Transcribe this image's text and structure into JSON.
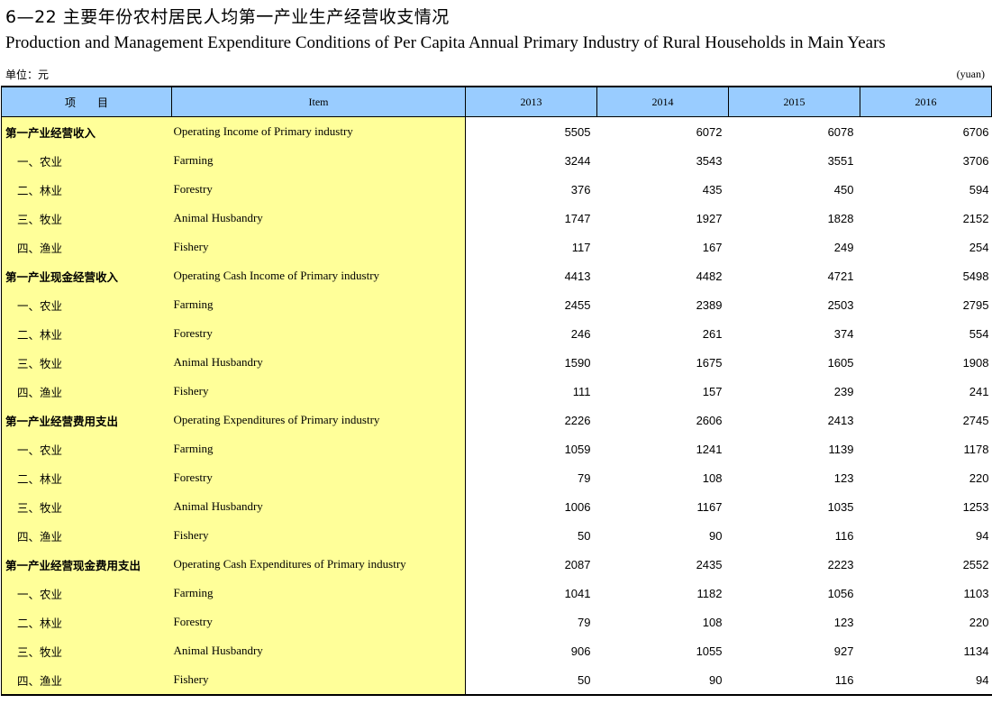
{
  "title_cn": "6—22  主要年份农村居民人均第一产业生产经营收支情况",
  "title_en": "Production and Management Expenditure Conditions of Per Capita Annual Primary Industry of Rural Households in Main Years",
  "unit_cn": "单位：元",
  "unit_en": "(yuan)",
  "header": {
    "item_cn": "项　　目",
    "item_en": "Item",
    "years": [
      "2013",
      "2014",
      "2015",
      "2016"
    ]
  },
  "rows": [
    {
      "cn": "第一产业经营收入",
      "en": "Operating  Income of   Primary industry",
      "values": [
        "5505",
        "6072",
        "6078",
        "6706"
      ],
      "level": "main"
    },
    {
      "cn": "一、农业",
      "en": "Farming",
      "values": [
        "3244",
        "3543",
        "3551",
        "3706"
      ],
      "level": "sub"
    },
    {
      "cn": "二、林业",
      "en": "Forestry",
      "values": [
        "376",
        "435",
        "450",
        "594"
      ],
      "level": "sub"
    },
    {
      "cn": "三、牧业",
      "en": "Animal Husbandry",
      "values": [
        "1747",
        "1927",
        "1828",
        "2152"
      ],
      "level": "sub"
    },
    {
      "cn": "四、渔业",
      "en": "Fishery",
      "values": [
        "117",
        "167",
        "249",
        "254"
      ],
      "level": "sub"
    },
    {
      "cn": "第一产业现金经营收入",
      "en": "Operating Cash Income of Primary industry",
      "values": [
        "4413",
        "4482",
        "4721",
        "5498"
      ],
      "level": "main"
    },
    {
      "cn": "一、农业",
      "en": "Farming",
      "values": [
        "2455",
        "2389",
        "2503",
        "2795"
      ],
      "level": "sub"
    },
    {
      "cn": "二、林业",
      "en": "Forestry",
      "values": [
        "246",
        "261",
        "374",
        "554"
      ],
      "level": "sub"
    },
    {
      "cn": "三、牧业",
      "en": "Animal Husbandry",
      "values": [
        "1590",
        "1675",
        "1605",
        "1908"
      ],
      "level": "sub"
    },
    {
      "cn": "四、渔业",
      "en": "Fishery",
      "values": [
        "111",
        "157",
        "239",
        "241"
      ],
      "level": "sub"
    },
    {
      "cn": "第一产业经营费用支出",
      "en": "Operating Expenditures of Primary industry",
      "values": [
        "2226",
        "2606",
        "2413",
        "2745"
      ],
      "level": "main"
    },
    {
      "cn": "一、农业",
      "en": "Farming",
      "values": [
        "1059",
        "1241",
        "1139",
        "1178"
      ],
      "level": "sub"
    },
    {
      "cn": "二、林业",
      "en": "Forestry",
      "values": [
        "79",
        "108",
        "123",
        "220"
      ],
      "level": "sub"
    },
    {
      "cn": "三、牧业",
      "en": "Animal Husbandry",
      "values": [
        "1006",
        "1167",
        "1035",
        "1253"
      ],
      "level": "sub"
    },
    {
      "cn": "四、渔业",
      "en": "Fishery",
      "values": [
        "50",
        "90",
        "116",
        "94"
      ],
      "level": "sub"
    },
    {
      "cn": "第一产业经营现金费用支出",
      "en": "Operating Cash Expenditures of Primary industry",
      "values": [
        "2087",
        "2435",
        "2223",
        "2552"
      ],
      "level": "main"
    },
    {
      "cn": "一、农业",
      "en": "Farming",
      "values": [
        "1041",
        "1182",
        "1056",
        "1103"
      ],
      "level": "sub"
    },
    {
      "cn": "二、林业",
      "en": "Forestry",
      "values": [
        "79",
        "108",
        "123",
        "220"
      ],
      "level": "sub"
    },
    {
      "cn": "三、牧业",
      "en": "Animal Husbandry",
      "values": [
        "906",
        "1055",
        "927",
        "1134"
      ],
      "level": "sub"
    },
    {
      "cn": "四、渔业",
      "en": "Fishery",
      "values": [
        "50",
        "90",
        "116",
        "94"
      ],
      "level": "sub"
    }
  ],
  "colors": {
    "header_bg": "#99ccff",
    "item_bg": "#ffff99"
  }
}
